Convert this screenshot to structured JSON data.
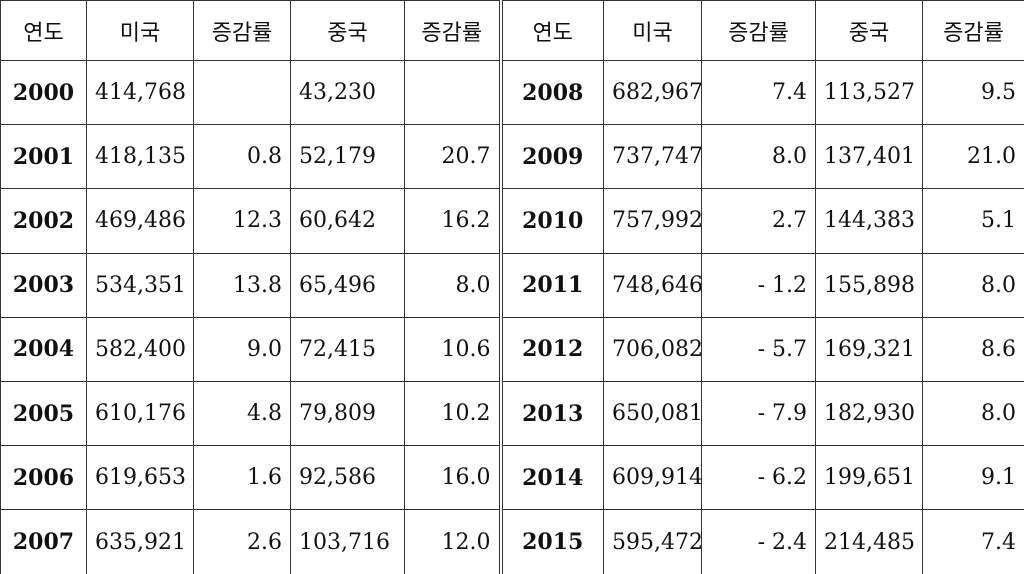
{
  "table": {
    "headers": [
      "연도",
      "미국",
      "증감률",
      "중국",
      "증감률",
      "연도",
      "미국",
      "증감률",
      "중국",
      "증감률"
    ],
    "rows": [
      {
        "left": {
          "year": "2000",
          "usa": "414,768",
          "usa_rate": "",
          "china": "43,230",
          "china_rate": ""
        },
        "right": {
          "year": "2008",
          "usa": "682,967",
          "usa_rate": "7.4",
          "china": "113,527",
          "china_rate": "9.5"
        }
      },
      {
        "left": {
          "year": "2001",
          "usa": "418,135",
          "usa_rate": "0.8",
          "china": "52,179",
          "china_rate": "20.7"
        },
        "right": {
          "year": "2009",
          "usa": "737,747",
          "usa_rate": "8.0",
          "china": "137,401",
          "china_rate": "21.0"
        }
      },
      {
        "left": {
          "year": "2002",
          "usa": "469,486",
          "usa_rate": "12.3",
          "china": "60,642",
          "china_rate": "16.2"
        },
        "right": {
          "year": "2010",
          "usa": "757,992",
          "usa_rate": "2.7",
          "china": "144,383",
          "china_rate": "5.1"
        }
      },
      {
        "left": {
          "year": "2003",
          "usa": "534,351",
          "usa_rate": "13.8",
          "china": "65,496",
          "china_rate": "8.0"
        },
        "right": {
          "year": "2011",
          "usa": "748,646",
          "usa_rate": "- 1.2",
          "china": "155,898",
          "china_rate": "8.0"
        }
      },
      {
        "left": {
          "year": "2004",
          "usa": "582,400",
          "usa_rate": "9.0",
          "china": "72,415",
          "china_rate": "10.6"
        },
        "right": {
          "year": "2012",
          "usa": "706,082",
          "usa_rate": "- 5.7",
          "china": "169,321",
          "china_rate": "8.6"
        }
      },
      {
        "left": {
          "year": "2005",
          "usa": "610,176",
          "usa_rate": "4.8",
          "china": "79,809",
          "china_rate": "10.2"
        },
        "right": {
          "year": "2013",
          "usa": "650,081",
          "usa_rate": "- 7.9",
          "china": "182,930",
          "china_rate": "8.0"
        }
      },
      {
        "left": {
          "year": "2006",
          "usa": "619,653",
          "usa_rate": "1.6",
          "china": "92,586",
          "china_rate": "16.0"
        },
        "right": {
          "year": "2014",
          "usa": "609,914",
          "usa_rate": "-  6.2",
          "china": "199,651",
          "china_rate": "9.1"
        }
      },
      {
        "left": {
          "year": "2007",
          "usa": "635,921",
          "usa_rate": "2.6",
          "china": "103,716",
          "china_rate": "12.0"
        },
        "right": {
          "year": "2015",
          "usa": "595,472",
          "usa_rate": "-  2.4",
          "china": "214,485",
          "china_rate": "7.4"
        }
      }
    ]
  }
}
